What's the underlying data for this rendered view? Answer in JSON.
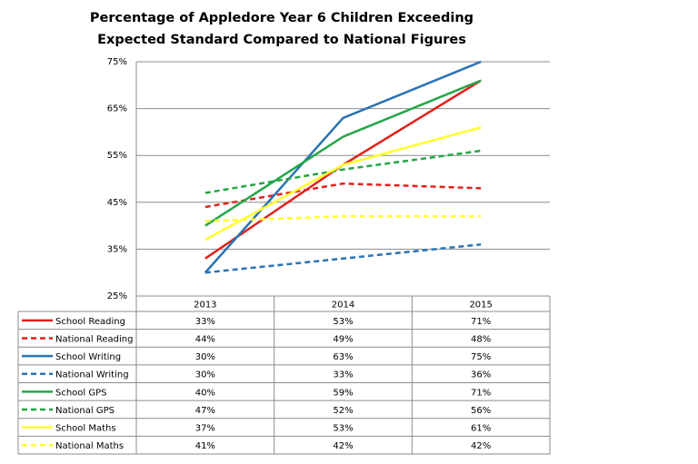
{
  "chart_data": {
    "type": "line",
    "title": [
      "Percentage of Appledore Year 6 Children Exceeding",
      "Expected Standard Compared to National Figures"
    ],
    "categories": [
      "2013",
      "2014",
      "2015"
    ],
    "ylim": [
      25,
      75
    ],
    "yticks": [
      {
        "value": 25,
        "label": "25%"
      },
      {
        "value": 35,
        "label": "35%"
      },
      {
        "value": 45,
        "label": "45%"
      },
      {
        "value": 55,
        "label": "55%"
      },
      {
        "value": 65,
        "label": "65%"
      },
      {
        "value": 75,
        "label": "75%"
      }
    ],
    "grid": true,
    "series": [
      {
        "name": "School Reading",
        "color": "#e3211c",
        "dashed": false,
        "values": [
          33,
          53,
          71
        ],
        "value_labels": [
          "33%",
          "53%",
          "71%"
        ]
      },
      {
        "name": "National Reading",
        "color": "#e3211c",
        "dashed": true,
        "values": [
          44,
          49,
          48
        ],
        "value_labels": [
          "44%",
          "49%",
          "48%"
        ]
      },
      {
        "name": "School Writing",
        "color": "#2a73b4",
        "dashed": false,
        "values": [
          30,
          63,
          75
        ],
        "value_labels": [
          "30%",
          "63%",
          "75%"
        ]
      },
      {
        "name": "National Writing",
        "color": "#2a73b4",
        "dashed": true,
        "values": [
          30,
          33,
          36
        ],
        "value_labels": [
          "30%",
          "33%",
          "36%"
        ]
      },
      {
        "name": "School GPS",
        "color": "#25a648",
        "dashed": false,
        "values": [
          40,
          59,
          71
        ],
        "value_labels": [
          "40%",
          "59%",
          "71%"
        ]
      },
      {
        "name": "National GPS",
        "color": "#25a648",
        "dashed": true,
        "values": [
          47,
          52,
          56
        ],
        "value_labels": [
          "47%",
          "52%",
          "56%"
        ]
      },
      {
        "name": "School Maths",
        "color": "#ffff2e",
        "dashed": false,
        "values": [
          37,
          53,
          61
        ],
        "value_labels": [
          "37%",
          "53%",
          "61%"
        ]
      },
      {
        "name": "National Maths",
        "color": "#ffff2e",
        "dashed": true,
        "values": [
          41,
          42,
          42
        ],
        "value_labels": [
          "41%",
          "42%",
          "42%"
        ]
      }
    ]
  }
}
